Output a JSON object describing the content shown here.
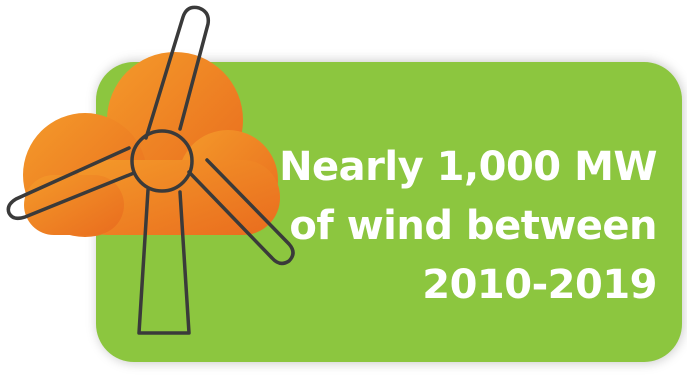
{
  "infographic": {
    "headline_line1": "Nearly 1,000 MW",
    "headline_line2": "of wind between",
    "headline_line3": "2010-2019",
    "icon": "wind-turbine-cloud-icon",
    "colors": {
      "card": "#8cc63f",
      "cloud": "#f08a24",
      "outline": "#3a3a3a",
      "text": "#ffffff"
    }
  }
}
